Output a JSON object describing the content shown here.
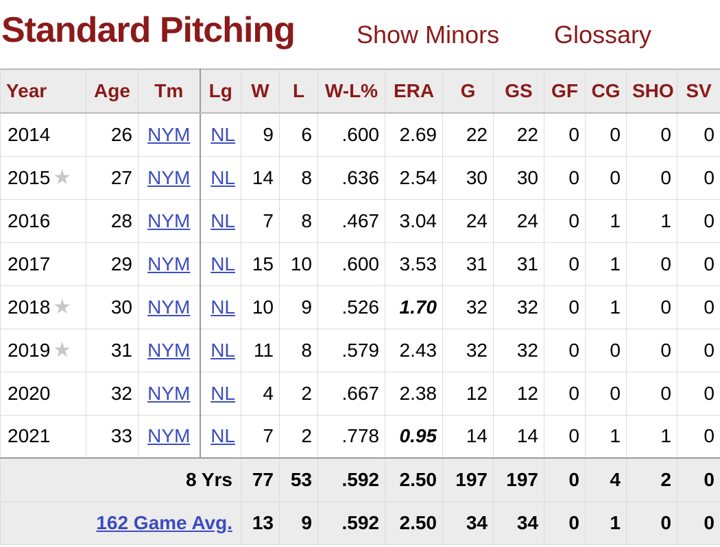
{
  "header": {
    "title": "Standard Pitching",
    "links": [
      "Show Minors",
      "Glossary"
    ]
  },
  "colors": {
    "accent": "#8b1a1a",
    "link": "#3b4cc0",
    "star": "#c8c8c8"
  },
  "table": {
    "columns": [
      "Year",
      "Age",
      "Tm",
      "Lg",
      "W",
      "L",
      "W-L%",
      "ERA",
      "G",
      "GS",
      "GF",
      "CG",
      "SHO",
      "SV"
    ],
    "rows": [
      {
        "year": "2014",
        "star": false,
        "age": "26",
        "tm": "NYM",
        "lg": "NL",
        "w": "9",
        "l": "6",
        "wlp": ".600",
        "era": "2.69",
        "era_lead": false,
        "g": "22",
        "gs": "22",
        "gf": "0",
        "cg": "0",
        "sho": "0",
        "sv": "0"
      },
      {
        "year": "2015",
        "star": true,
        "age": "27",
        "tm": "NYM",
        "lg": "NL",
        "w": "14",
        "l": "8",
        "wlp": ".636",
        "era": "2.54",
        "era_lead": false,
        "g": "30",
        "gs": "30",
        "gf": "0",
        "cg": "0",
        "sho": "0",
        "sv": "0"
      },
      {
        "year": "2016",
        "star": false,
        "age": "28",
        "tm": "NYM",
        "lg": "NL",
        "w": "7",
        "l": "8",
        "wlp": ".467",
        "era": "3.04",
        "era_lead": false,
        "g": "24",
        "gs": "24",
        "gf": "0",
        "cg": "1",
        "sho": "1",
        "sv": "0"
      },
      {
        "year": "2017",
        "star": false,
        "age": "29",
        "tm": "NYM",
        "lg": "NL",
        "w": "15",
        "l": "10",
        "wlp": ".600",
        "era": "3.53",
        "era_lead": false,
        "g": "31",
        "gs": "31",
        "gf": "0",
        "cg": "1",
        "sho": "0",
        "sv": "0"
      },
      {
        "year": "2018",
        "star": true,
        "age": "30",
        "tm": "NYM",
        "lg": "NL",
        "w": "10",
        "l": "9",
        "wlp": ".526",
        "era": "1.70",
        "era_lead": true,
        "g": "32",
        "gs": "32",
        "gf": "0",
        "cg": "1",
        "sho": "0",
        "sv": "0"
      },
      {
        "year": "2019",
        "star": true,
        "age": "31",
        "tm": "NYM",
        "lg": "NL",
        "w": "11",
        "l": "8",
        "wlp": ".579",
        "era": "2.43",
        "era_lead": false,
        "g": "32",
        "gs": "32",
        "gf": "0",
        "cg": "0",
        "sho": "0",
        "sv": "0"
      },
      {
        "year": "2020",
        "star": false,
        "age": "32",
        "tm": "NYM",
        "lg": "NL",
        "w": "4",
        "l": "2",
        "wlp": ".667",
        "era": "2.38",
        "era_lead": false,
        "g": "12",
        "gs": "12",
        "gf": "0",
        "cg": "0",
        "sho": "0",
        "sv": "0"
      },
      {
        "year": "2021",
        "star": false,
        "age": "33",
        "tm": "NYM",
        "lg": "NL",
        "w": "7",
        "l": "2",
        "wlp": ".778",
        "era": "0.95",
        "era_lead": true,
        "g": "14",
        "gs": "14",
        "gf": "0",
        "cg": "1",
        "sho": "1",
        "sv": "0"
      }
    ],
    "totals": [
      {
        "label": "8 Yrs",
        "is_link": false,
        "w": "77",
        "l": "53",
        "wlp": ".592",
        "era": "2.50",
        "g": "197",
        "gs": "197",
        "gf": "0",
        "cg": "4",
        "sho": "2",
        "sv": "0"
      },
      {
        "label": "162 Game Avg.",
        "is_link": true,
        "w": "13",
        "l": "9",
        "wlp": ".592",
        "era": "2.50",
        "g": "34",
        "gs": "34",
        "gf": "0",
        "cg": "1",
        "sho": "0",
        "sv": "0"
      }
    ]
  }
}
